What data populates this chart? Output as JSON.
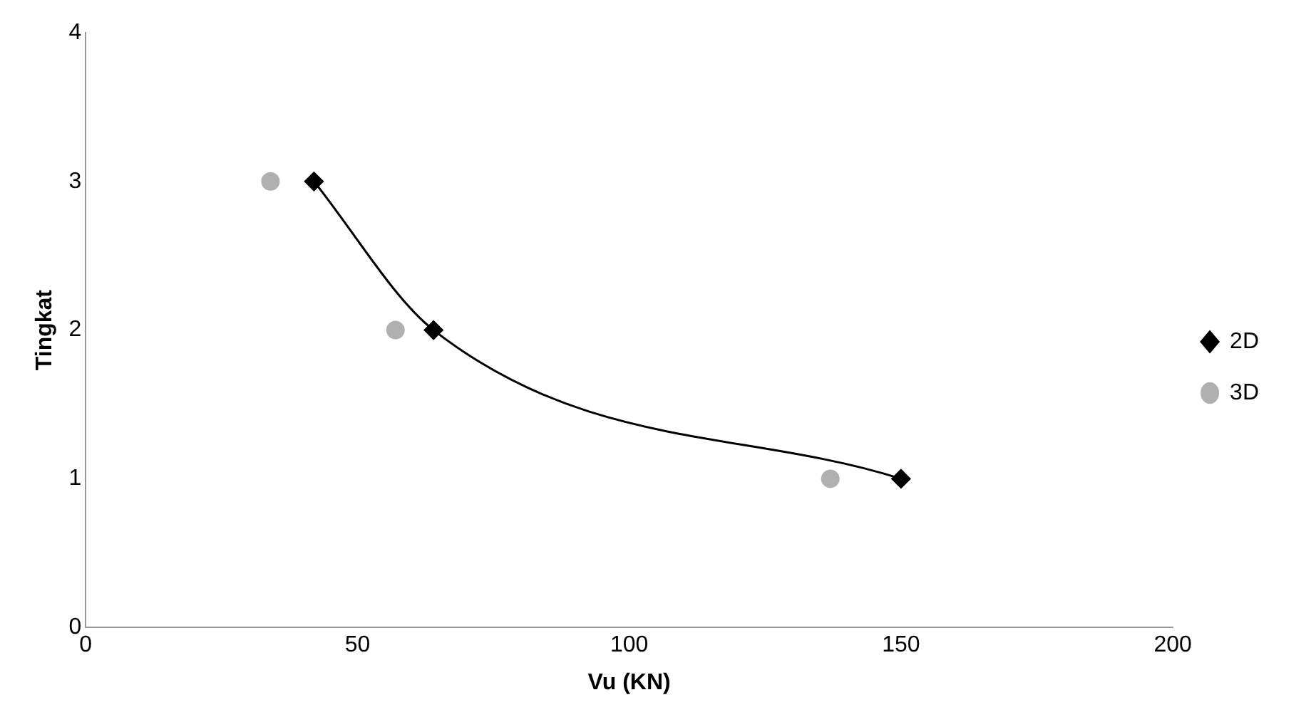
{
  "chart_data": {
    "type": "scatter",
    "xlabel": "Vu (KN)",
    "ylabel": "Tingkat",
    "xlim": [
      0,
      200
    ],
    "xticks": [
      0,
      50,
      100,
      150,
      200
    ],
    "ylim": [
      0,
      4
    ],
    "yticks": [
      0,
      1,
      2,
      3,
      4
    ],
    "grid": false,
    "legend": "right",
    "series": [
      {
        "name": "2D",
        "type": "line",
        "color": "#000000",
        "marker": "diamond",
        "x": [
          42,
          64,
          150
        ],
        "values": [
          3,
          2,
          1
        ]
      },
      {
        "name": "3D",
        "type": "scatter",
        "color": "#b0b0b0",
        "marker": "circle",
        "x": [
          34,
          57,
          137
        ],
        "values": [
          3,
          2,
          1
        ]
      }
    ]
  }
}
